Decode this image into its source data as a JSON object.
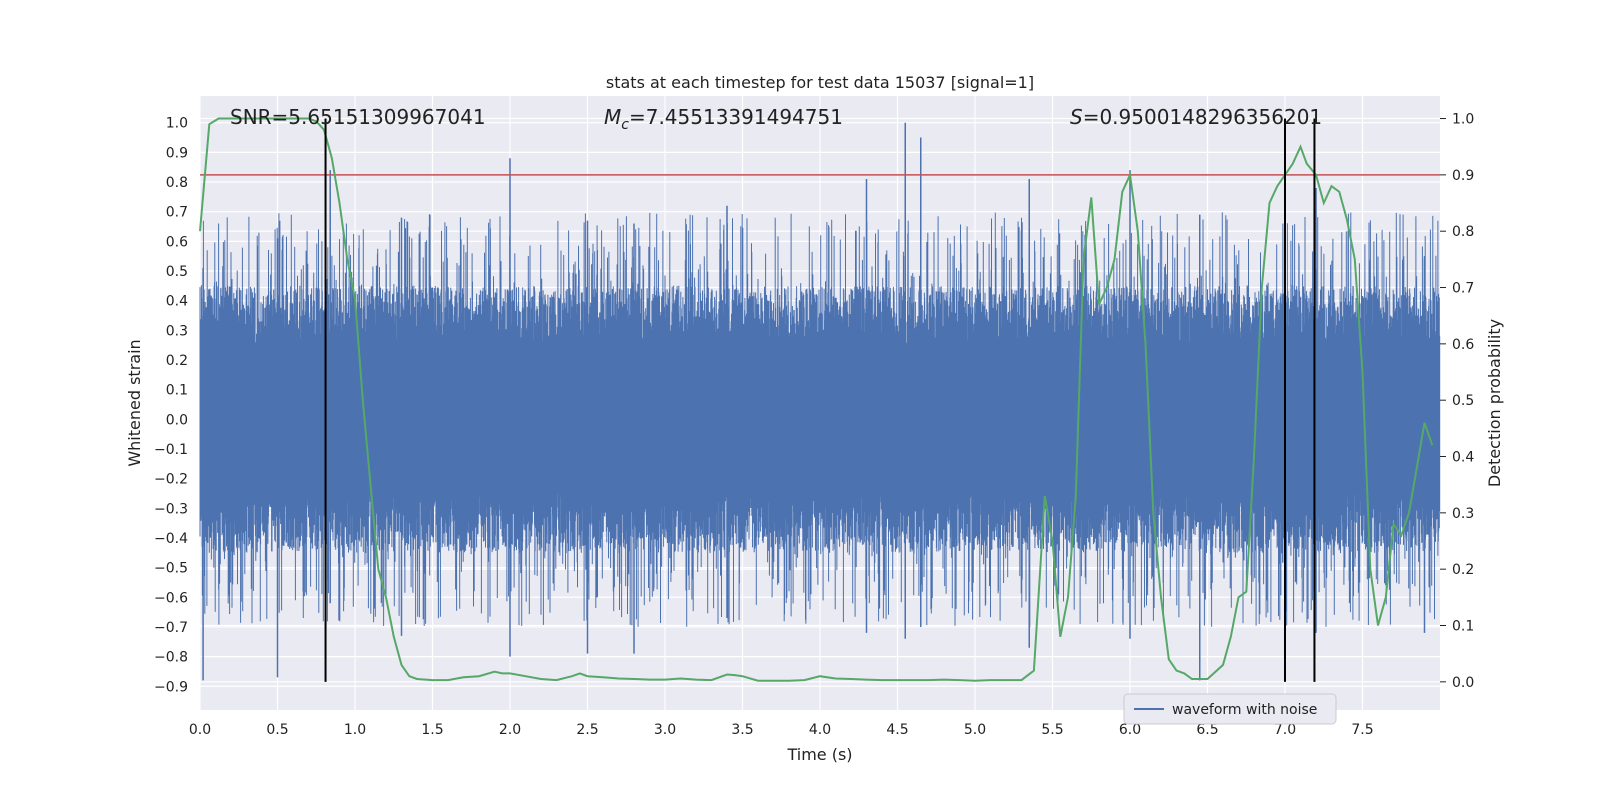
{
  "chart_data": {
    "type": "line",
    "title": "stats at each timestep for test data 15037 [signal=1]",
    "xlabel": "Time (s)",
    "ylabel_left": "Whitened strain",
    "ylabel_right": "Detection probability",
    "xlim": [
      0.0,
      8.0
    ],
    "ylim_left": [
      -0.98,
      1.09
    ],
    "ylim_right": [
      -0.05,
      1.04
    ],
    "x_ticks": [
      "0.0",
      "0.5",
      "1.0",
      "1.5",
      "2.0",
      "2.5",
      "3.0",
      "3.5",
      "4.0",
      "4.5",
      "5.0",
      "5.5",
      "6.0",
      "6.5",
      "7.0",
      "7.5"
    ],
    "y_left_ticks": [
      "-0.9",
      "-0.8",
      "-0.7",
      "-0.6",
      "-0.5",
      "-0.4",
      "-0.3",
      "-0.2",
      "-0.1",
      "0.0",
      "0.1",
      "0.2",
      "0.3",
      "0.4",
      "0.5",
      "0.6",
      "0.7",
      "0.8",
      "0.9",
      "1.0"
    ],
    "y_right_ticks": [
      "0.0",
      "0.1",
      "0.2",
      "0.3",
      "0.4",
      "0.5",
      "0.6",
      "0.7",
      "0.8",
      "0.9",
      "1.0"
    ],
    "grid": true,
    "legend": {
      "position": "bottom-right",
      "entries": [
        "waveform with noise"
      ]
    },
    "annotations": {
      "snr": "SNR=5.65151309967041",
      "mc_symbol": "M",
      "mc_sub": "c",
      "mc_value": "=7.45513391494751",
      "s_symbol": "S",
      "s_value": "=0.9500148296356201"
    },
    "threshold": {
      "axis": "right",
      "value": 0.9,
      "color": "#c44e52"
    },
    "vertical_lines": [
      0.81,
      7.0,
      7.19
    ],
    "series": [
      {
        "name": "waveform with noise",
        "axis": "left",
        "color": "#4c72b0",
        "envelope_note": "dense noisy strain series",
        "peaks": [
          [
            0.02,
            0.51,
            -0.88
          ],
          [
            0.5,
            0.61,
            -0.87
          ],
          [
            0.84,
            0.84,
            -0.62
          ],
          [
            1.3,
            0.68,
            -0.73
          ],
          [
            2.0,
            0.88,
            -0.8
          ],
          [
            2.5,
            0.67,
            -0.79
          ],
          [
            2.8,
            0.66,
            -0.79
          ],
          [
            3.4,
            0.72,
            -0.67
          ],
          [
            4.3,
            0.81,
            -0.72
          ],
          [
            4.55,
            1.0,
            -0.74
          ],
          [
            4.65,
            0.95,
            -0.7
          ],
          [
            5.35,
            0.81,
            -0.77
          ],
          [
            6.0,
            0.84,
            -0.74
          ],
          [
            6.45,
            0.69,
            -0.88
          ],
          [
            7.2,
            0.78,
            -0.72
          ],
          [
            7.9,
            0.55,
            -0.72
          ]
        ]
      },
      {
        "name": "detection probability",
        "axis": "right",
        "color": "#55a868",
        "x": [
          0.0,
          0.06,
          0.12,
          0.2,
          0.3,
          0.4,
          0.5,
          0.6,
          0.7,
          0.75,
          0.8,
          0.85,
          0.9,
          0.95,
          1.0,
          1.05,
          1.1,
          1.15,
          1.2,
          1.25,
          1.3,
          1.35,
          1.4,
          1.5,
          1.6,
          1.7,
          1.8,
          1.9,
          1.95,
          2.0,
          2.1,
          2.2,
          2.3,
          2.4,
          2.45,
          2.5,
          2.6,
          2.7,
          2.8,
          2.9,
          3.0,
          3.1,
          3.2,
          3.3,
          3.4,
          3.45,
          3.5,
          3.6,
          3.7,
          3.8,
          3.9,
          4.0,
          4.1,
          4.2,
          4.3,
          4.4,
          4.5,
          4.6,
          4.7,
          4.8,
          4.9,
          5.0,
          5.1,
          5.2,
          5.3,
          5.38,
          5.45,
          5.5,
          5.55,
          5.6,
          5.65,
          5.7,
          5.75,
          5.8,
          5.85,
          5.9,
          5.95,
          6.0,
          6.05,
          6.1,
          6.15,
          6.2,
          6.25,
          6.3,
          6.35,
          6.4,
          6.5,
          6.6,
          6.65,
          6.7,
          6.75,
          6.8,
          6.85,
          6.9,
          6.95,
          7.0,
          7.05,
          7.1,
          7.14,
          7.2,
          7.25,
          7.3,
          7.35,
          7.4,
          7.45,
          7.5,
          7.55,
          7.6,
          7.65,
          7.7,
          7.75,
          7.8,
          7.85,
          7.9,
          7.95
        ],
        "values": [
          0.8,
          0.99,
          1.0,
          1.0,
          1.0,
          1.0,
          1.0,
          1.0,
          1.0,
          0.995,
          0.98,
          0.93,
          0.85,
          0.75,
          0.68,
          0.5,
          0.35,
          0.2,
          0.15,
          0.08,
          0.03,
          0.01,
          0.005,
          0.003,
          0.003,
          0.008,
          0.01,
          0.018,
          0.015,
          0.015,
          0.01,
          0.005,
          0.003,
          0.01,
          0.015,
          0.01,
          0.008,
          0.006,
          0.005,
          0.004,
          0.004,
          0.006,
          0.004,
          0.003,
          0.013,
          0.012,
          0.01,
          0.002,
          0.002,
          0.002,
          0.003,
          0.01,
          0.006,
          0.005,
          0.004,
          0.003,
          0.003,
          0.003,
          0.003,
          0.004,
          0.003,
          0.002,
          0.003,
          0.003,
          0.003,
          0.02,
          0.33,
          0.25,
          0.08,
          0.15,
          0.33,
          0.75,
          0.86,
          0.67,
          0.7,
          0.75,
          0.87,
          0.9,
          0.8,
          0.6,
          0.3,
          0.15,
          0.04,
          0.02,
          0.015,
          0.005,
          0.005,
          0.03,
          0.08,
          0.15,
          0.16,
          0.4,
          0.7,
          0.85,
          0.88,
          0.9,
          0.92,
          0.95,
          0.92,
          0.9,
          0.85,
          0.88,
          0.87,
          0.82,
          0.75,
          0.55,
          0.2,
          0.1,
          0.15,
          0.28,
          0.26,
          0.3,
          0.38,
          0.46,
          0.42
        ]
      }
    ]
  }
}
